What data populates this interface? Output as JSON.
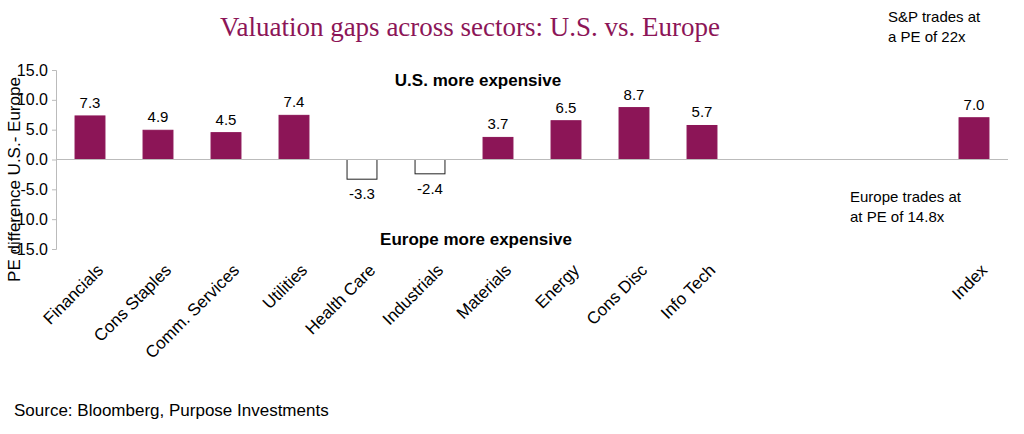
{
  "chart_data": {
    "type": "bar",
    "title": "Valuation gaps across sectors: U.S. vs. Europe",
    "y_label": "PE difference U.S.- Europe",
    "categories": [
      "Financials",
      "Cons Staples",
      "Comm. Services",
      "Utilities",
      "Health Care",
      "Industrials",
      "Materials",
      "Energy",
      "Cons Disc",
      "Info Tech",
      null,
      null,
      null,
      "Index"
    ],
    "values": [
      7.3,
      4.9,
      4.5,
      7.4,
      -3.3,
      -2.4,
      3.7,
      6.5,
      8.7,
      5.7,
      null,
      null,
      null,
      7.0
    ],
    "value_labels": [
      "7.3",
      "4.9",
      "4.5",
      "7.4",
      "-3.3",
      "-2.4",
      "3.7",
      "6.5",
      "8.7",
      "5.7",
      null,
      null,
      null,
      "7.0"
    ],
    "colors": [
      "#8C1557",
      "#8C1557",
      "#8C1557",
      "#8C1557",
      "#FFFFFF",
      "#FFFFFF",
      "#8C1557",
      "#8C1557",
      "#8C1557",
      "#8C1557",
      null,
      null,
      null,
      "#8C1557"
    ],
    "data_labels": true,
    "grid": false,
    "ylim": [
      -15,
      15
    ],
    "yticks": [
      {
        "value": 15,
        "label": "15.0"
      },
      {
        "value": 10,
        "label": "10.0"
      },
      {
        "value": 5,
        "label": "5.0"
      },
      {
        "value": 0,
        "label": "0.0"
      },
      {
        "value": -5,
        "label": "-5.0"
      },
      {
        "value": -10,
        "label": "-10.0"
      },
      {
        "value": -15,
        "label": "-15.0"
      }
    ],
    "annotations": [
      {
        "lines": [
          "U.S. more expensive"
        ]
      },
      {
        "lines": [
          "Europe more expensive"
        ]
      },
      {
        "lines": [
          "S&P trades at",
          "a PE of 22x"
        ]
      },
      {
        "lines": [
          "Europe trades at",
          "at PE of 14.8x"
        ]
      }
    ],
    "source": "Source: Bloomberg, Purpose Investments"
  }
}
